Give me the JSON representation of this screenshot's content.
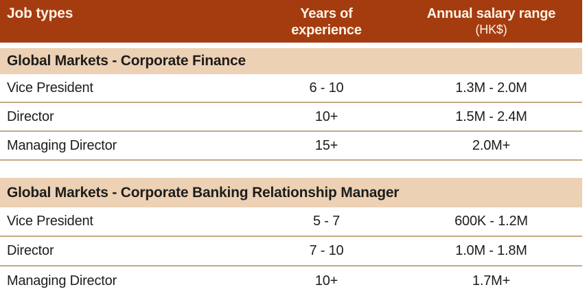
{
  "colors": {
    "header_bg": "#a43c10",
    "header_text": "#fdf3e5",
    "section_bg": "#edd1b5",
    "row_line": "#c3a983",
    "text": "#1d1d1b",
    "page_bg": "#ffffff"
  },
  "header": {
    "col1": "Job types",
    "col2_line1": "Years of",
    "col2_line2": "experience",
    "col3_line1": "Annual salary range",
    "col3_line2": "(HK$)"
  },
  "chart_data": {
    "type": "table",
    "columns": [
      "Job types",
      "Years of experience",
      "Annual salary range (HK$)"
    ],
    "sections": [
      {
        "title": "Global Markets - Corporate Finance",
        "rows": [
          [
            "Vice President",
            "6 - 10",
            "1.3M - 2.0M"
          ],
          [
            "Director",
            "10+",
            "1.5M - 2.4M"
          ],
          [
            "Managing Director",
            "15+",
            "2.0M+"
          ]
        ]
      },
      {
        "title": "Global Markets - Corporate Banking Relationship Manager",
        "rows": [
          [
            "Vice President",
            "5 - 7",
            "600K - 1.2M"
          ],
          [
            "Director",
            "7 - 10",
            "1.0M - 1.8M"
          ],
          [
            "Managing Director",
            "10+",
            "1.7M+"
          ]
        ]
      }
    ]
  }
}
